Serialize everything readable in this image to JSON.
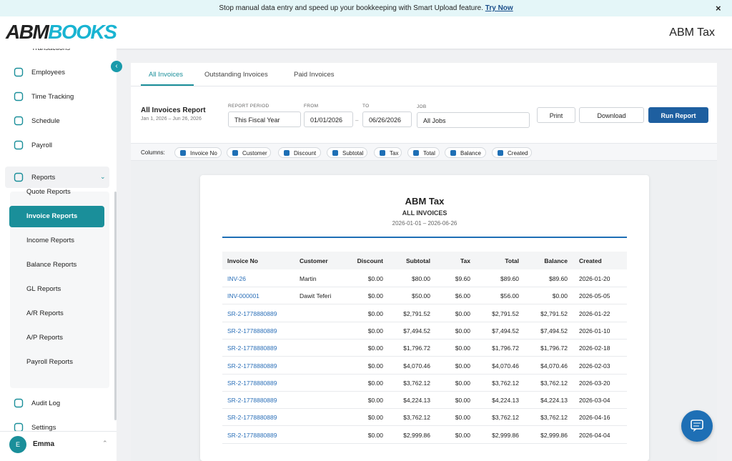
{
  "banner": {
    "text": "Stop manual data entry and speed up your bookkeeping with Smart Upload feature.",
    "link": "Try Now",
    "close": "×"
  },
  "header": {
    "logo_dark": "ABM",
    "logo_accent": "BOOKS",
    "company": "ABM Tax"
  },
  "sidebar": {
    "partial_top": "Transactions",
    "items": [
      "Employees",
      "Time Tracking",
      "Schedule",
      "Payroll"
    ],
    "reports": "Reports",
    "report_links": [
      {
        "label": "Quote Reports"
      },
      {
        "label": "Invoice Reports",
        "active": true
      },
      {
        "label": "Income Reports"
      },
      {
        "label": "Balance Reports"
      },
      {
        "label": "GL Reports"
      },
      {
        "label": "A/R Reports"
      },
      {
        "label": "A/P Reports"
      },
      {
        "label": "Payroll Reports"
      }
    ],
    "after": [
      "Audit Log",
      "Settings"
    ],
    "user": {
      "initial": "E",
      "name": "Emma"
    }
  },
  "tabs": [
    {
      "label": "All Invoices",
      "active": true
    },
    {
      "label": "Outstanding Invoices"
    },
    {
      "label": "Paid Invoices"
    }
  ],
  "controls": {
    "title": "All Invoices Report",
    "range": "Jan 1, 2026 – Jun 26, 2026",
    "period_label": "REPORT PERIOD",
    "period": "This Fiscal Year",
    "from_label": "FROM",
    "from": "01/01/2026",
    "dash": "–",
    "to_label": "TO",
    "to": "06/26/2026",
    "job_label": "JOB",
    "job": "All Jobs",
    "print": "Print",
    "download": "Download",
    "run": "Run Report"
  },
  "columns_label": "Columns:",
  "columns": [
    {
      "label": "Invoice No",
      "checked": true
    },
    {
      "label": "Customer",
      "checked": true
    },
    {
      "label": "Discount",
      "checked": true
    },
    {
      "label": "Subtotal",
      "checked": true
    },
    {
      "label": "Tax",
      "checked": true
    },
    {
      "label": "Total",
      "checked": true
    },
    {
      "label": "Balance",
      "checked": true
    },
    {
      "label": "Created",
      "checked": true
    }
  ],
  "report": {
    "title": "ABM Tax",
    "subtitle": "ALL INVOICES",
    "period": "2026-01-01 – 2026-06-26",
    "headers": [
      "Invoice No",
      "Customer",
      "Discount",
      "Subtotal",
      "Tax",
      "Total",
      "Balance",
      "Created"
    ],
    "rows": [
      [
        "INV-26",
        "Martin",
        "$0.00",
        "$80.00",
        "$9.60",
        "$89.60",
        "$89.60",
        "2026-01-20"
      ],
      [
        "INV-000001",
        "Dawit Teferi",
        "$0.00",
        "$50.00",
        "$6.00",
        "$56.00",
        "$0.00",
        "2026-05-05"
      ],
      [
        "SR-2-1778880889",
        null,
        "$0.00",
        "$2,791.52",
        "$0.00",
        "$2,791.52",
        "$2,791.52",
        "2026-01-22"
      ],
      [
        "SR-2-1778880889",
        null,
        "$0.00",
        "$7,494.52",
        "$0.00",
        "$7,494.52",
        "$7,494.52",
        "2026-01-10"
      ],
      [
        "SR-2-1778880889",
        null,
        "$0.00",
        "$1,796.72",
        "$0.00",
        "$1,796.72",
        "$1,796.72",
        "2026-02-18"
      ],
      [
        "SR-2-1778880889",
        null,
        "$0.00",
        "$4,070.46",
        "$0.00",
        "$4,070.46",
        "$4,070.46",
        "2026-02-03"
      ],
      [
        "SR-2-1778880889",
        null,
        "$0.00",
        "$3,762.12",
        "$0.00",
        "$3,762.12",
        "$3,762.12",
        "2026-03-20"
      ],
      [
        "SR-2-1778880889",
        null,
        "$0.00",
        "$4,224.13",
        "$0.00",
        "$4,224.13",
        "$4,224.13",
        "2026-03-04"
      ],
      [
        "SR-2-1778880889",
        null,
        "$0.00",
        "$3,762.12",
        "$0.00",
        "$3,762.12",
        "$3,762.12",
        "2026-04-16"
      ],
      [
        "SR-2-1778880889",
        null,
        "$0.00",
        "$2,999.86",
        "$0.00",
        "$2,999.86",
        "$2,999.86",
        "2026-04-04"
      ]
    ]
  }
}
